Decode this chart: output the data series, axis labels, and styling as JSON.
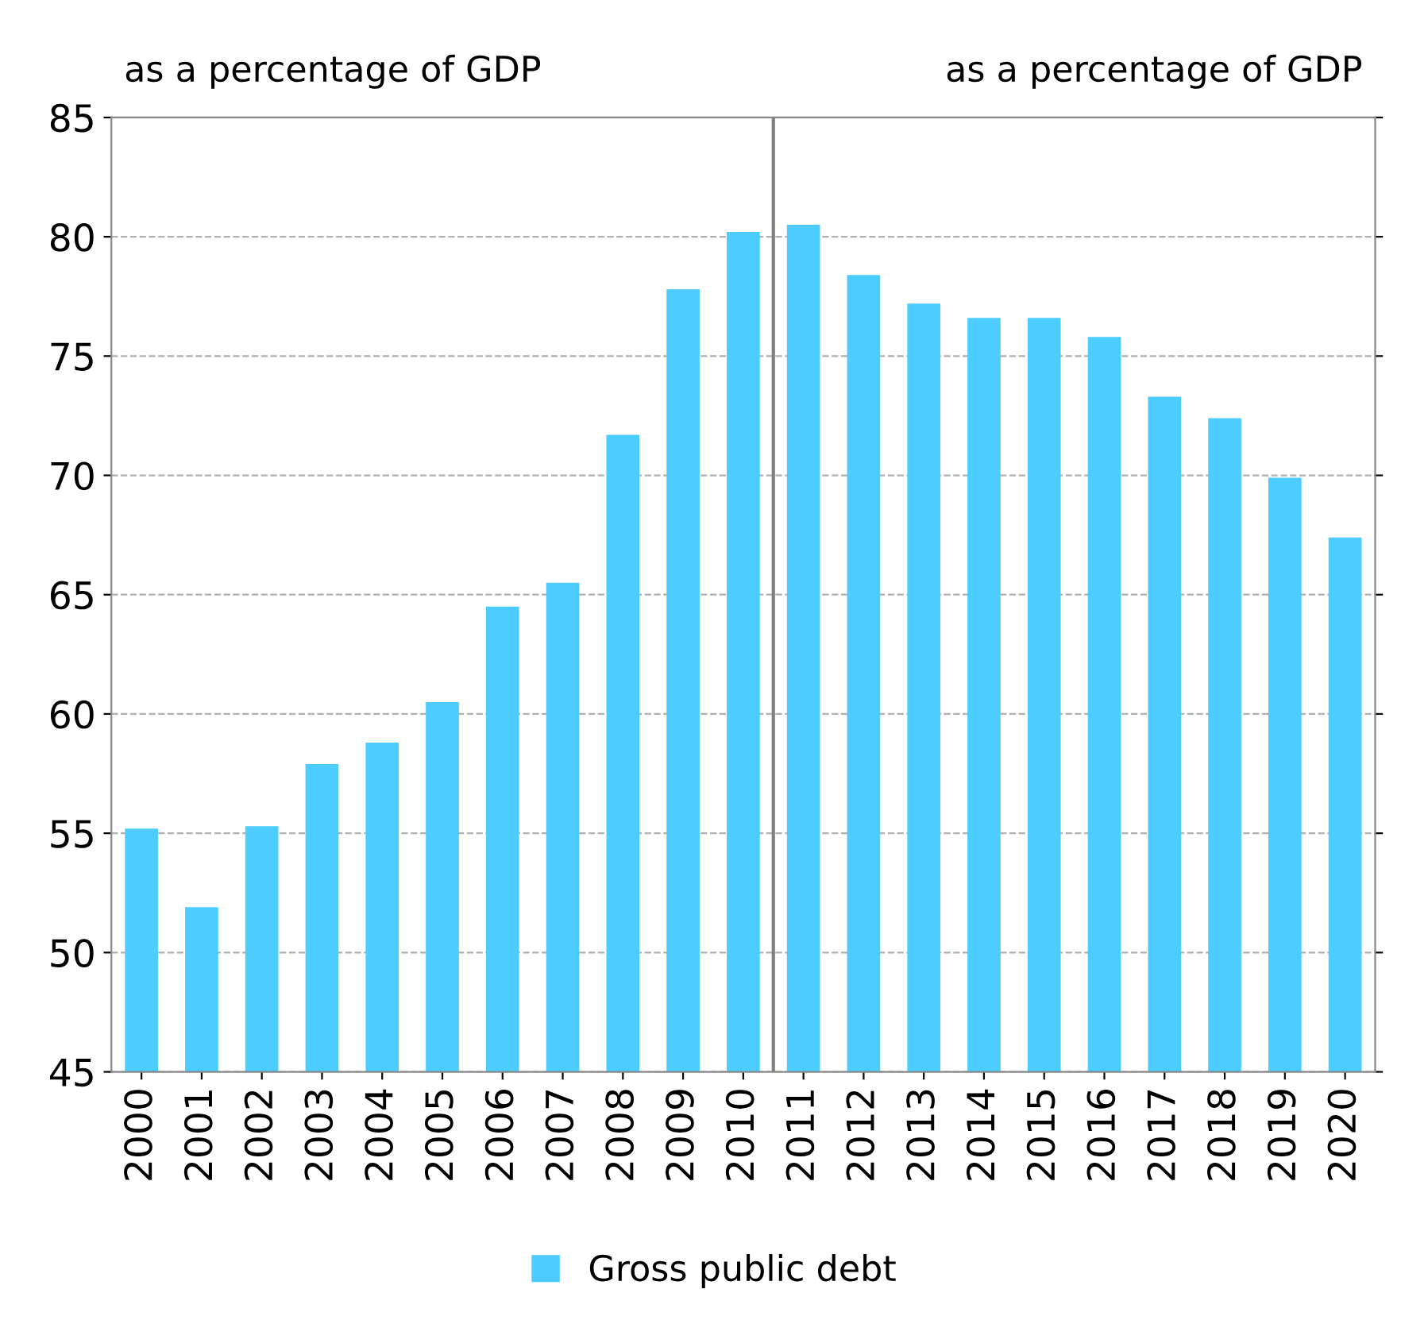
{
  "chart_data": {
    "type": "bar",
    "annotations": [
      "as a percentage of GDP",
      "as a percentage of GDP"
    ],
    "x": [
      2000,
      2001,
      2002,
      2003,
      2004,
      2005,
      2006,
      2007,
      2008,
      2009,
      2010,
      2011,
      2012,
      2013,
      2014,
      2015,
      2016,
      2017,
      2018,
      2019,
      2020
    ],
    "series": [
      {
        "name": "Gross public debt",
        "color": "#4dcdff",
        "values": [
          55.2,
          51.9,
          55.3,
          57.9,
          58.8,
          60.5,
          64.5,
          65.5,
          71.7,
          77.8,
          80.2,
          80.5,
          78.4,
          77.2,
          76.6,
          76.6,
          75.8,
          73.3,
          72.4,
          69.9,
          67.4
        ]
      }
    ],
    "xlim": [
      1999.5,
      2020.5
    ],
    "xticks": [
      2000,
      2001,
      2002,
      2003,
      2004,
      2005,
      2006,
      2007,
      2008,
      2009,
      2010,
      2011,
      2012,
      2013,
      2014,
      2015,
      2016,
      2017,
      2018,
      2019,
      2020
    ],
    "ylim": [
      45,
      85
    ],
    "yticks": [
      45,
      50,
      55,
      60,
      65,
      70,
      75,
      80,
      85
    ],
    "ref_lines": [
      {
        "axis": "x",
        "value": 2010.5,
        "color": "#808080"
      }
    ],
    "grid": "y",
    "legend": "bottom"
  }
}
